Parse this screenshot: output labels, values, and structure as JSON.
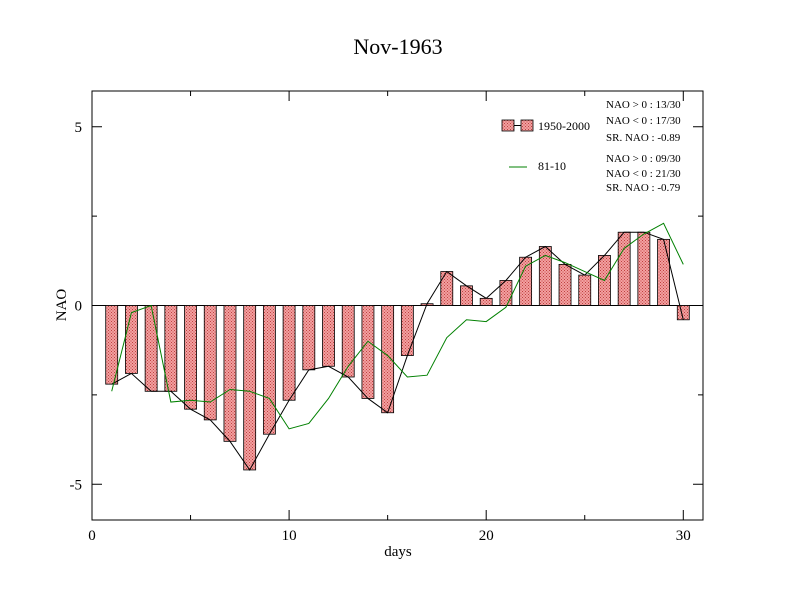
{
  "chart_data": {
    "type": "bar",
    "title": "Nov-1963",
    "xlabel": "days",
    "ylabel": "NAO",
    "xlim": [
      0,
      31
    ],
    "ylim": [
      -6,
      6
    ],
    "xticks": [
      0,
      10,
      20,
      30
    ],
    "yticks": [
      -5,
      0,
      5
    ],
    "x": [
      1,
      2,
      3,
      4,
      5,
      6,
      7,
      8,
      9,
      10,
      11,
      12,
      13,
      14,
      15,
      16,
      17,
      18,
      19,
      20,
      21,
      22,
      23,
      24,
      25,
      26,
      27,
      28,
      29,
      30
    ],
    "series": [
      {
        "name": "1950-2000",
        "style": "bar-with-line",
        "bar_color": "#f08080",
        "line_color": "#000000",
        "values": [
          -2.2,
          -1.9,
          -2.4,
          -2.4,
          -2.9,
          -3.2,
          -3.8,
          -4.6,
          -3.6,
          -2.65,
          -1.8,
          -1.7,
          -2.0,
          -2.6,
          -3.0,
          -1.4,
          0.05,
          0.95,
          0.55,
          0.2,
          0.7,
          1.35,
          1.65,
          1.15,
          0.85,
          1.4,
          2.05,
          2.05,
          1.85,
          -0.4
        ]
      },
      {
        "name": "81-10",
        "style": "line",
        "line_color": "#008000",
        "values": [
          -2.4,
          -0.2,
          0.0,
          -2.7,
          -2.65,
          -2.7,
          -2.35,
          -2.4,
          -2.6,
          -3.45,
          -3.3,
          -2.6,
          -1.7,
          -1.0,
          -1.4,
          -2.0,
          -1.95,
          -0.9,
          -0.4,
          -0.45,
          -0.05,
          1.1,
          1.4,
          1.2,
          0.95,
          0.7,
          1.6,
          2.0,
          2.3,
          1.15
        ]
      }
    ],
    "stats": [
      {
        "line1": "NAO > 0 : 13/30",
        "line2": "NAO < 0 : 17/30",
        "line3": "SR. NAO : -0.89"
      },
      {
        "line1": "NAO > 0 : 09/30",
        "line2": "NAO < 0 : 21/30",
        "line3": "SR. NAO : -0.79"
      }
    ],
    "legend_placement": "top-right",
    "grid": false
  }
}
